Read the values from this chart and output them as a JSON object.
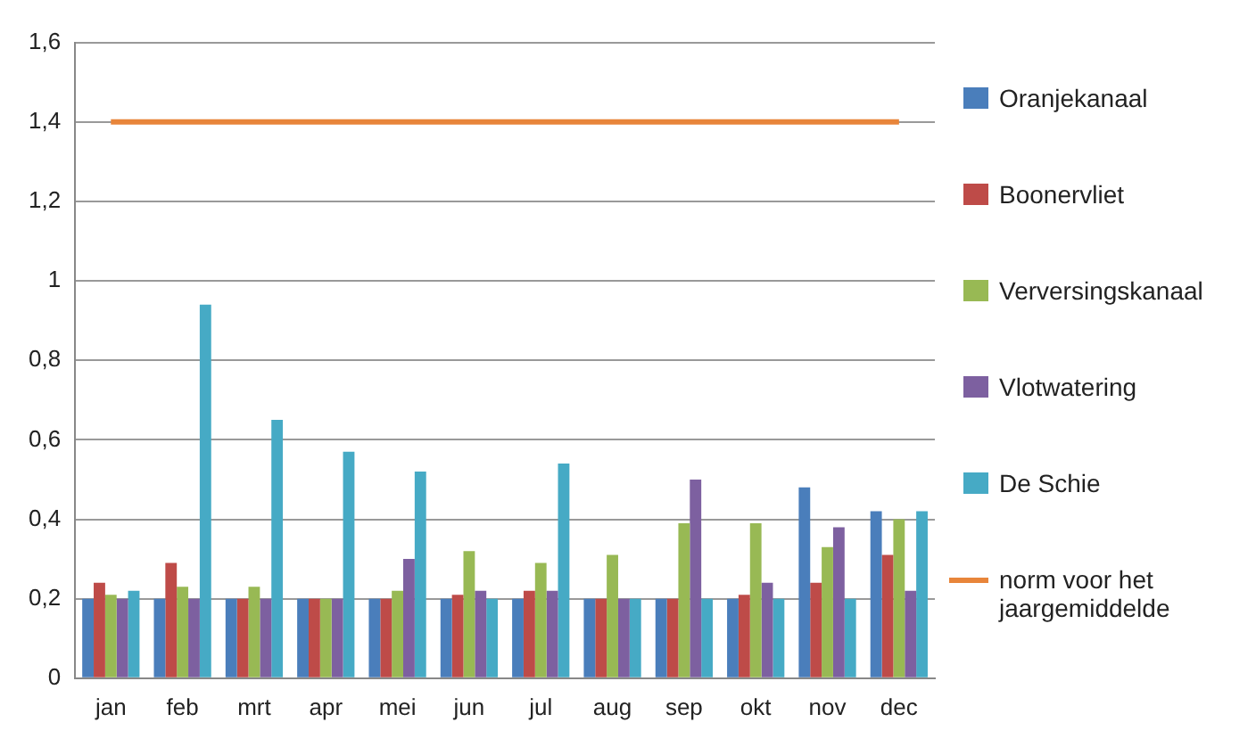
{
  "chart_data": {
    "type": "bar",
    "categories": [
      "jan",
      "feb",
      "mrt",
      "apr",
      "mei",
      "jun",
      "jul",
      "aug",
      "sep",
      "okt",
      "nov",
      "dec"
    ],
    "series": [
      {
        "name": "Oranjekanaal",
        "color": "#4a7ebb",
        "values": [
          0.2,
          0.2,
          0.2,
          0.2,
          0.2,
          0.2,
          0.2,
          0.2,
          0.2,
          0.2,
          0.48,
          0.42
        ]
      },
      {
        "name": "Boonervliet",
        "color": "#be4b48",
        "values": [
          0.24,
          0.29,
          0.2,
          0.2,
          0.2,
          0.21,
          0.22,
          0.2,
          0.2,
          0.21,
          0.24,
          0.31
        ]
      },
      {
        "name": "Verversingskanaal",
        "color": "#98b954",
        "values": [
          0.21,
          0.23,
          0.23,
          0.2,
          0.22,
          0.32,
          0.29,
          0.31,
          0.39,
          0.39,
          0.33,
          0.4
        ]
      },
      {
        "name": "Vlotwatering",
        "color": "#7d60a0",
        "values": [
          0.2,
          0.2,
          0.2,
          0.2,
          0.3,
          0.22,
          0.22,
          0.2,
          0.5,
          0.24,
          0.38,
          0.22
        ]
      },
      {
        "name": "De Schie",
        "color": "#46aac5",
        "values": [
          0.22,
          0.94,
          0.65,
          0.57,
          0.52,
          0.2,
          0.54,
          0.2,
          0.2,
          0.2,
          0.2,
          0.42
        ]
      },
      {
        "name": "norm voor het jaargemiddelde",
        "type": "line",
        "color": "#e8853a",
        "values": [
          1.4,
          1.4,
          1.4,
          1.4,
          1.4,
          1.4,
          1.4,
          1.4,
          1.4,
          1.4,
          1.4,
          1.4
        ]
      }
    ],
    "ylim": [
      0,
      1.6
    ],
    "yticks": [
      {
        "value": 0,
        "label": "0"
      },
      {
        "value": 0.2,
        "label": "0,2"
      },
      {
        "value": 0.4,
        "label": "0,4"
      },
      {
        "value": 0.6,
        "label": "0,6"
      },
      {
        "value": 0.8,
        "label": "0,8"
      },
      {
        "value": 1,
        "label": "1"
      },
      {
        "value": 1.2,
        "label": "1,2"
      },
      {
        "value": 1.4,
        "label": "1,4"
      },
      {
        "value": 1.6,
        "label": "1,6"
      }
    ],
    "grid": "y",
    "legend": "right",
    "marker": "none"
  }
}
